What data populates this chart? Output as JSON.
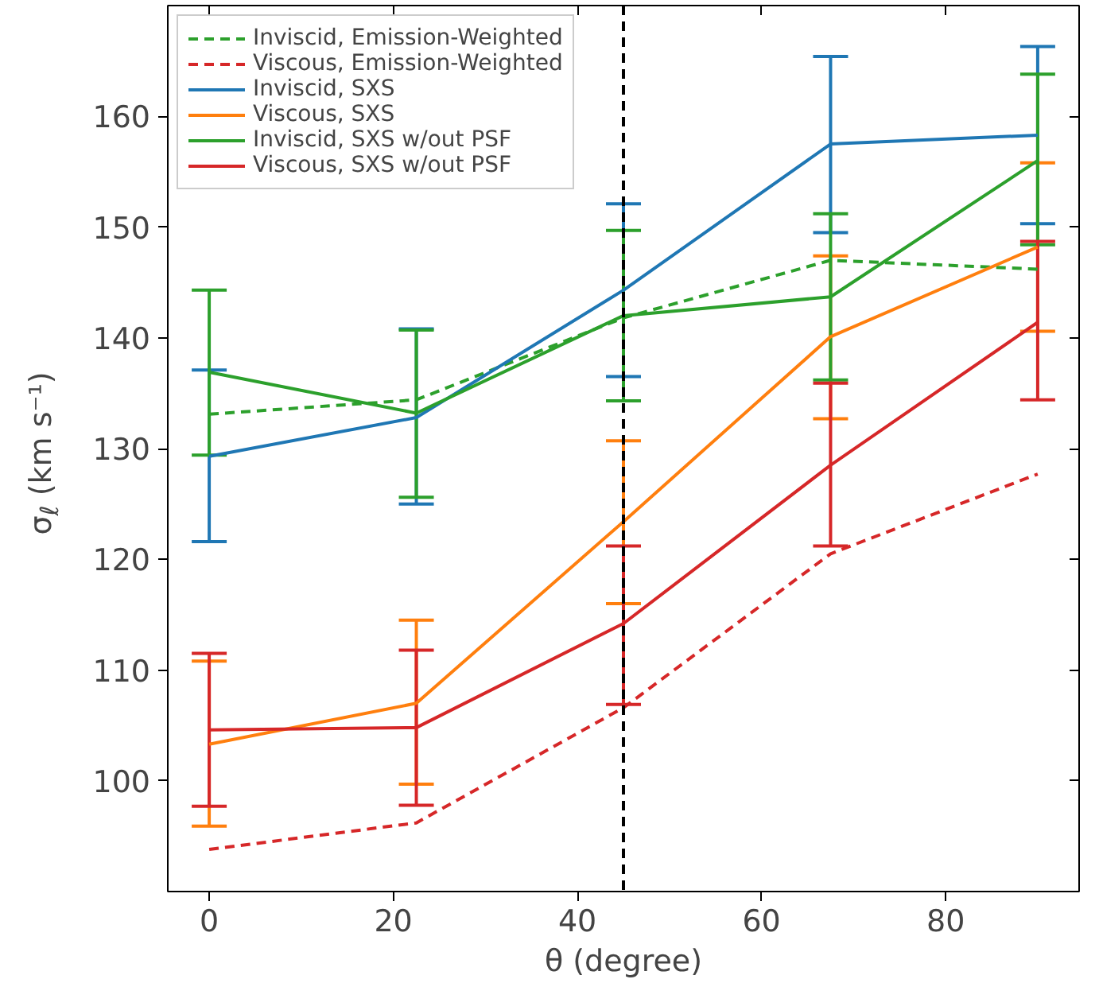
{
  "chart_data": {
    "type": "line",
    "x": [
      0,
      22.5,
      45,
      67.5,
      90
    ],
    "xlabel": "θ (degree)",
    "ylabel": "σ$_{ℓ}$ (km s⁻¹)",
    "xlim": [
      -4.5,
      94.5
    ],
    "ylim": [
      90,
      170
    ],
    "xticks": [
      0,
      20,
      40,
      60,
      80
    ],
    "yticks": [
      100,
      110,
      120,
      130,
      140,
      150,
      160
    ],
    "grid": false,
    "legend": "top left",
    "ref_lines": [
      {
        "axis": "x",
        "value": 45,
        "label": null,
        "color": "#000000",
        "line_style": "dashed"
      }
    ],
    "series": [
      {
        "name": "Inviscid, Emission-Weighted",
        "color": "#2ca02c",
        "line_style": "dashed",
        "values": [
          133.1,
          134.4,
          141.8,
          147.0,
          146.2
        ]
      },
      {
        "name": "Viscous, Emission-Weighted",
        "color": "#d62728",
        "line_style": "dashed",
        "values": [
          93.8,
          96.2,
          106.6,
          120.5,
          127.7
        ]
      },
      {
        "name": "Inviscid, SXS",
        "color": "#1f77b4",
        "line_style": "solid",
        "values": [
          129.3,
          132.8,
          144.3,
          157.5,
          158.3
        ],
        "errors": [
          [
            121.6,
            137.1
          ],
          [
            125.0,
            140.8
          ],
          [
            136.5,
            152.1
          ],
          [
            149.5,
            165.4
          ],
          [
            150.3,
            166.3
          ]
        ]
      },
      {
        "name": "Viscous, SXS",
        "color": "#ff7f0e",
        "line_style": "solid",
        "values": [
          103.3,
          107.0,
          123.4,
          140.1,
          148.2
        ],
        "errors": [
          [
            95.9,
            110.8
          ],
          [
            99.7,
            114.5
          ],
          [
            116.0,
            130.7
          ],
          [
            132.7,
            147.4
          ],
          [
            140.6,
            155.8
          ]
        ]
      },
      {
        "name": "Inviscid, SXS w/out PSF",
        "color": "#2ca02c",
        "line_style": "solid",
        "values": [
          136.9,
          133.2,
          142.0,
          143.7,
          156.0
        ],
        "errors": [
          [
            129.4,
            144.3
          ],
          [
            125.6,
            140.7
          ],
          [
            134.3,
            149.7
          ],
          [
            136.2,
            151.2
          ],
          [
            148.4,
            163.8
          ]
        ]
      },
      {
        "name": "Viscous, SXS w/out PSF",
        "color": "#d62728",
        "line_style": "solid",
        "values": [
          104.6,
          104.8,
          114.2,
          128.5,
          141.4
        ],
        "errors": [
          [
            97.7,
            111.5
          ],
          [
            97.8,
            111.8
          ],
          [
            106.9,
            121.2
          ],
          [
            121.2,
            135.9
          ],
          [
            134.4,
            148.7
          ]
        ]
      }
    ]
  }
}
